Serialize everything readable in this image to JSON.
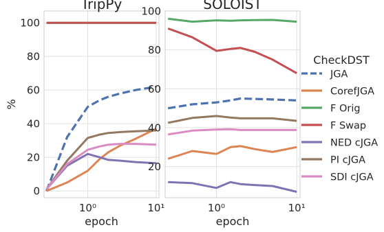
{
  "chart_data": [
    {
      "type": "line",
      "title": "TripPy",
      "xlabel": "epoch",
      "ylabel": "%",
      "xscale": "log",
      "xlim": [
        0.23,
        11
      ],
      "ylim": [
        -4,
        107
      ],
      "xticks": [
        1,
        10
      ],
      "xtick_labels": [
        "10⁰",
        "10¹"
      ],
      "yticks": [
        0,
        20,
        40,
        60,
        80,
        100
      ],
      "ytick_labels": [
        "0",
        "20",
        "40",
        "60",
        "80",
        "100"
      ],
      "grid": true,
      "x": [
        0.25,
        0.5,
        1,
        1.5,
        2,
        3,
        5,
        10
      ],
      "series": [
        {
          "name": "JGA",
          "values": [
            0,
            32,
            50,
            54,
            56,
            58,
            60,
            62
          ]
        },
        {
          "name": "CorefJGA",
          "values": [
            0,
            5,
            12,
            19,
            23,
            27,
            31,
            37
          ]
        },
        {
          "name": "F Orig",
          "values": [
            100,
            100,
            100,
            100,
            100,
            100,
            100,
            100
          ]
        },
        {
          "name": "F Swap",
          "values": [
            100,
            100,
            100,
            100,
            100,
            100,
            100,
            100
          ]
        },
        {
          "name": "NED cJGA",
          "values": [
            1,
            15,
            22,
            20,
            18.5,
            18,
            17.2,
            16.5
          ]
        },
        {
          "name": "PI cJGA",
          "values": [
            1,
            18,
            31.5,
            33.5,
            34.5,
            35,
            35.5,
            36
          ]
        },
        {
          "name": "SDI cJGA",
          "values": [
            1,
            16,
            24.5,
            26.5,
            27.5,
            28,
            28,
            27.5
          ]
        }
      ]
    },
    {
      "type": "line",
      "title": "SOLOIST",
      "xlabel": "epoch",
      "ylabel": "",
      "xscale": "log",
      "xlim": [
        0.23,
        11
      ],
      "ylim": [
        4,
        100
      ],
      "xticks": [
        1,
        10
      ],
      "xtick_labels": [
        "10⁰",
        "10¹"
      ],
      "yticks": [
        20,
        40,
        60,
        80,
        100
      ],
      "ytick_labels": [
        "20",
        "40",
        "60",
        "80",
        "100"
      ],
      "grid": true,
      "x": [
        0.25,
        0.5,
        1,
        1.5,
        2,
        3,
        5,
        10
      ],
      "series": [
        {
          "name": "JGA",
          "values": [
            50,
            52,
            53,
            54,
            55,
            54.8,
            54.5,
            54
          ]
        },
        {
          "name": "CorefJGA",
          "values": [
            24,
            28,
            26.5,
            30,
            30.5,
            29,
            27.5,
            30
          ]
        },
        {
          "name": "F Orig",
          "values": [
            96,
            94.5,
            95.2,
            95,
            95.2,
            95.3,
            95.4,
            94.5
          ]
        },
        {
          "name": "F Swap",
          "values": [
            91,
            86.5,
            79.5,
            80.5,
            81,
            79,
            75,
            68
          ]
        },
        {
          "name": "NED cJGA",
          "values": [
            12,
            11.5,
            9,
            12,
            11,
            10.5,
            10,
            7
          ]
        },
        {
          "name": "PI cJGA",
          "values": [
            42.5,
            45,
            46,
            45.2,
            44.8,
            44.8,
            44.8,
            43.5
          ]
        },
        {
          "name": "SDI cJGA",
          "values": [
            36.5,
            38.5,
            39,
            39.2,
            38.8,
            38.8,
            38.8,
            38.8
          ]
        }
      ]
    }
  ],
  "legend": {
    "title": "CheckDST",
    "placement": "right",
    "entries": [
      {
        "label": "JGA",
        "color": "#4c72b0",
        "dashed": true
      },
      {
        "label": "CorefJGA",
        "color": "#dd8452",
        "dashed": false
      },
      {
        "label": "F Orig",
        "color": "#55a868",
        "dashed": false
      },
      {
        "label": "F Swap",
        "color": "#c44e52",
        "dashed": false
      },
      {
        "label": "NED cJGA",
        "color": "#8172b3",
        "dashed": false
      },
      {
        "label": "PI cJGA",
        "color": "#937860",
        "dashed": false
      },
      {
        "label": "SDI cJGA",
        "color": "#da8bc3",
        "dashed": false
      }
    ]
  }
}
